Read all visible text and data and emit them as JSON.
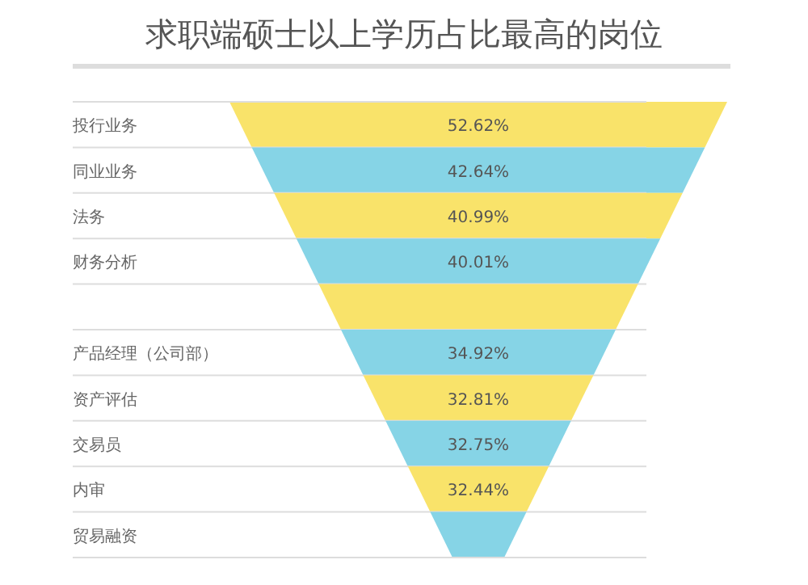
{
  "chart_data": {
    "type": "other",
    "title": "求职端硕士以上学历占比最高的岗位",
    "categories": [
      "投行业务",
      "同业业务",
      "法务",
      "财务分析",
      null,
      "产品经理（公司部）",
      "资产评估",
      "交易员",
      "内审",
      "贸易融资"
    ],
    "values": [
      52.62,
      42.64,
      40.99,
      40.01,
      null,
      34.92,
      32.81,
      32.75,
      32.44,
      null
    ],
    "colors": [
      "#f9e36a",
      "#86d4e6",
      "#f9e36a",
      "#86d4e6",
      "#f9e36a",
      "#86d4e6",
      "#f9e36a",
      "#86d4e6",
      "#f9e36a",
      "#86d4e6"
    ],
    "value_labels": [
      "52.62%",
      "42.64%",
      "40.99%",
      "40.01%",
      null,
      "34.92%",
      "32.81%",
      "32.75%",
      "32.44%",
      null
    ]
  }
}
